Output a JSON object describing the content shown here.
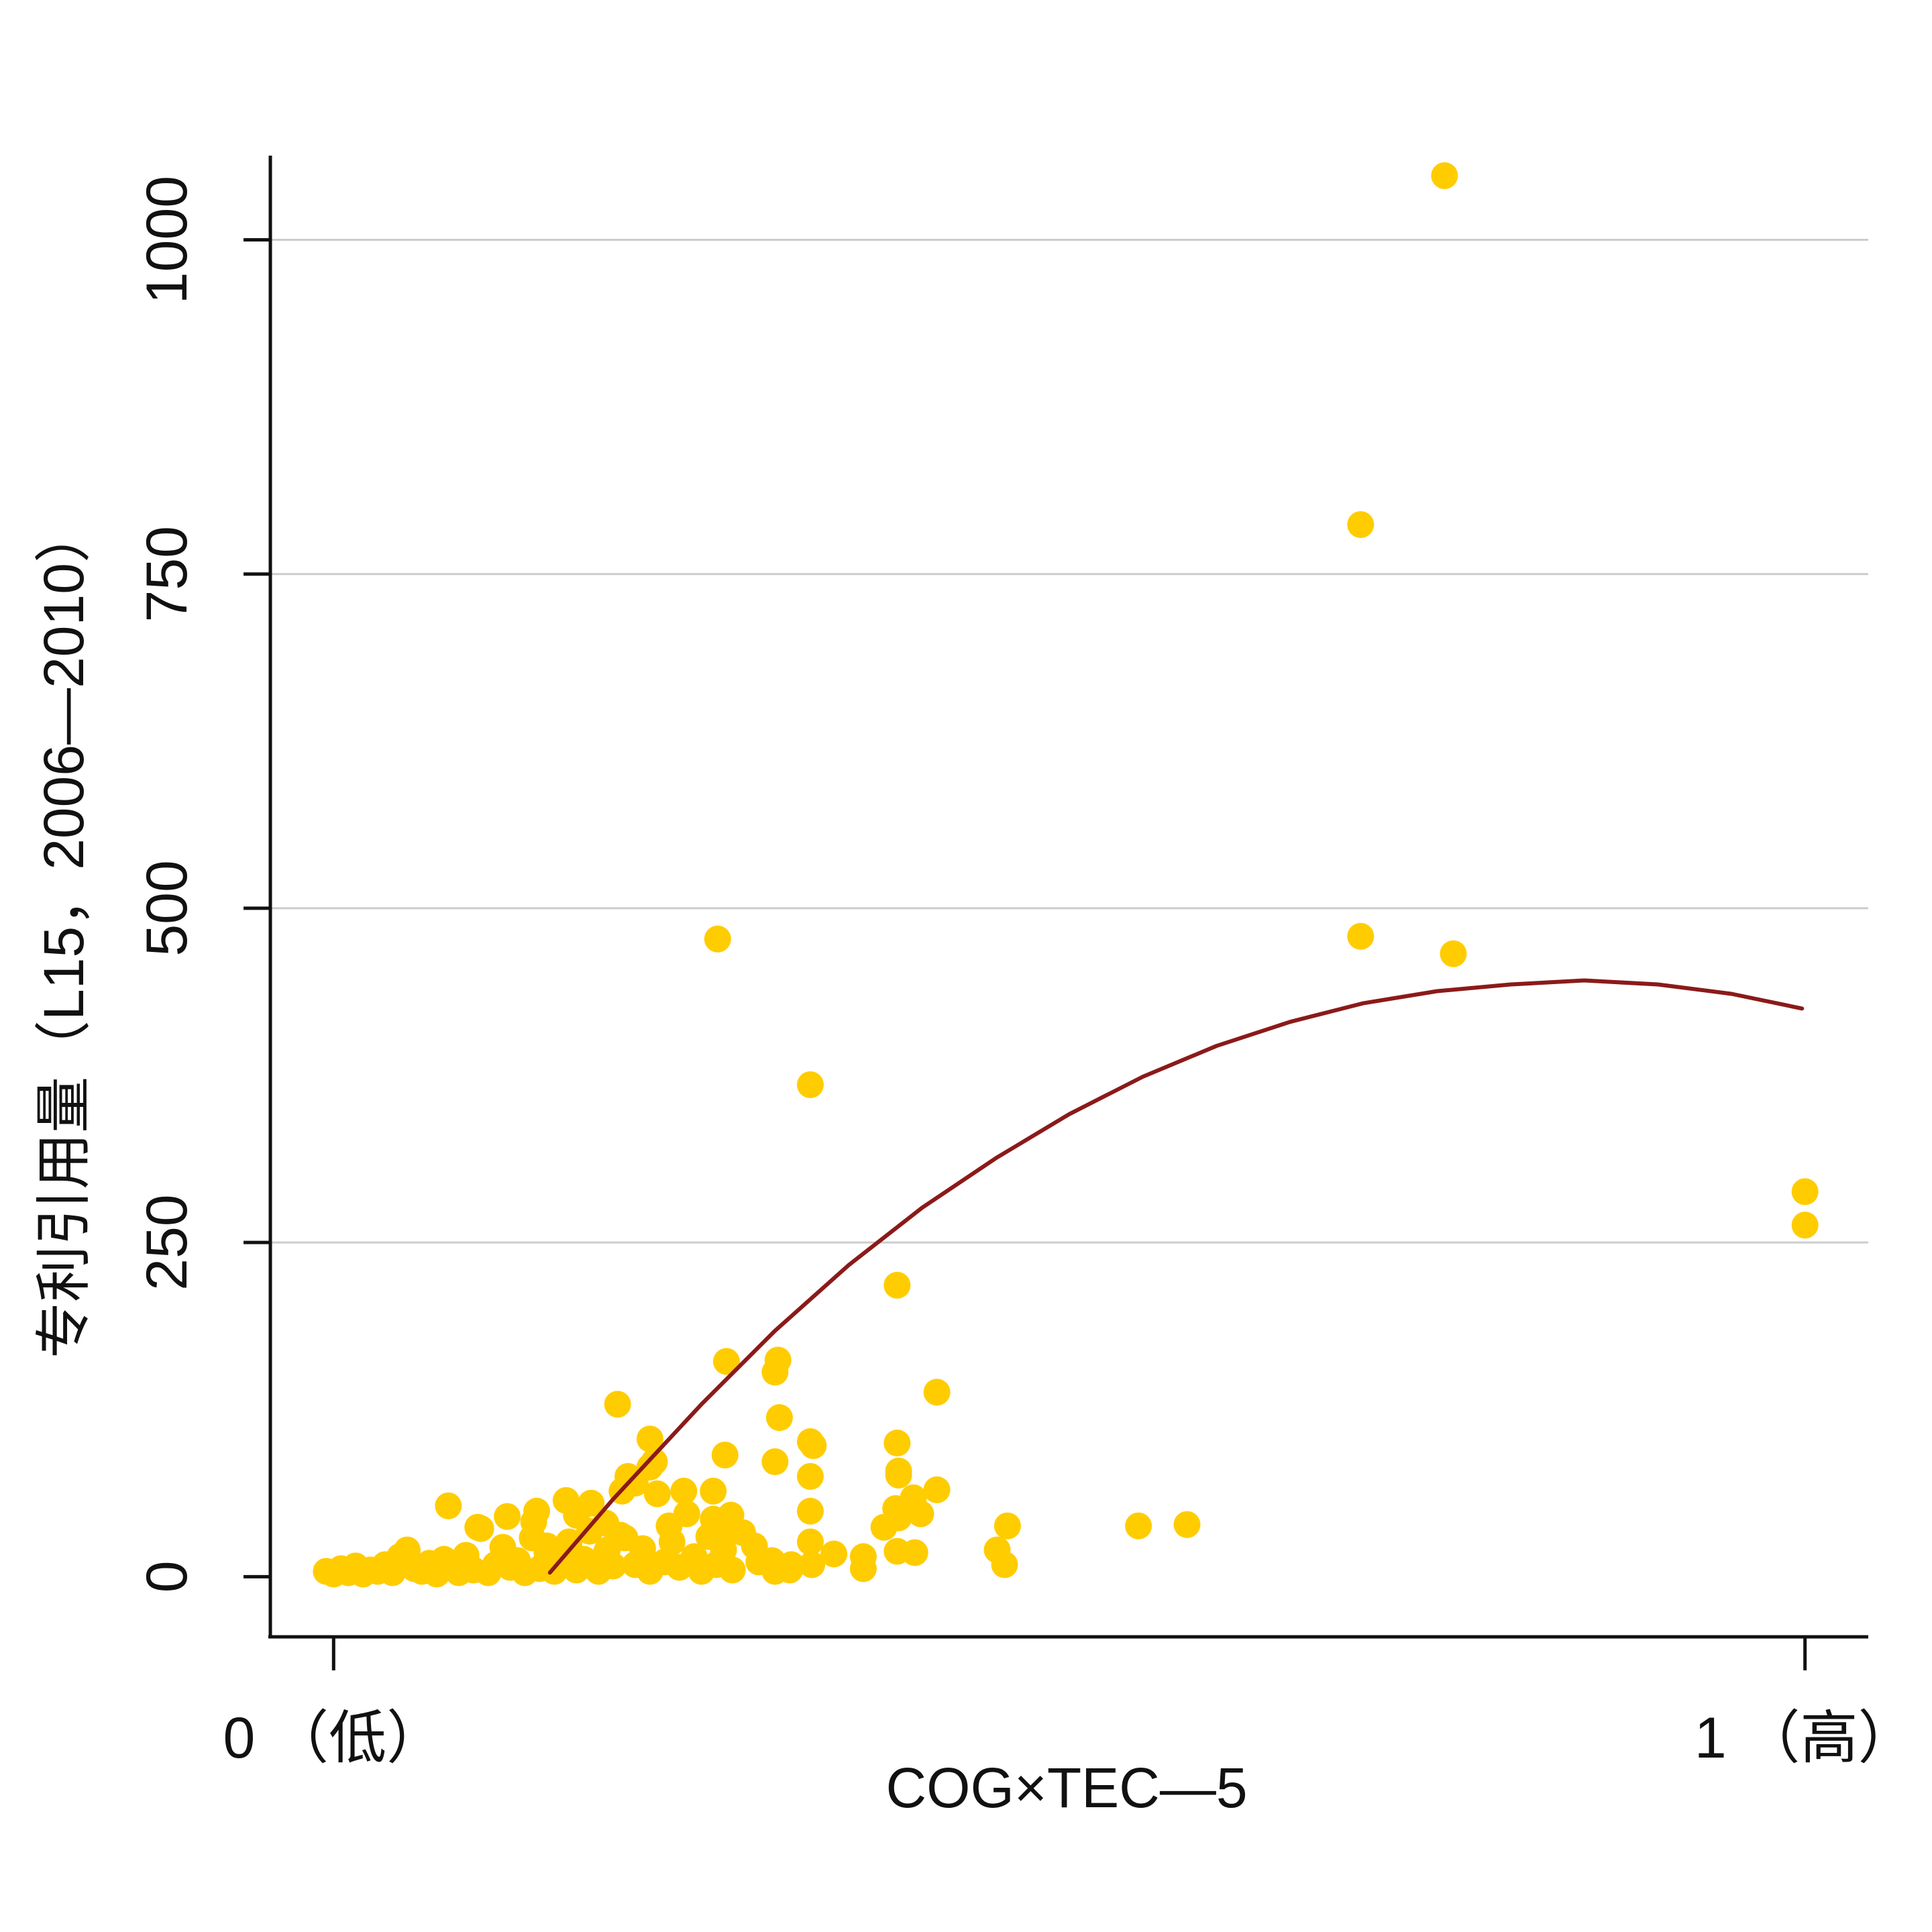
{
  "chart_data": {
    "type": "scatter",
    "xlabel": "COG×TEC—5",
    "ylabel": "专利引用量（L15，2006—2010）",
    "x_ticks": [
      {
        "value": 0,
        "label": "0 （低）"
      },
      {
        "value": 1,
        "label": "1 （高）"
      }
    ],
    "y_ticks": [
      {
        "value": 0,
        "label": "0"
      },
      {
        "value": 250,
        "label": "250"
      },
      {
        "value": 500,
        "label": "500"
      },
      {
        "value": 750,
        "label": "750"
      },
      {
        "value": 1000,
        "label": "1000"
      }
    ],
    "xlim": [
      -0.043,
      1.043
    ],
    "ylim": [
      -45,
      1063
    ],
    "grid": "horizontal",
    "colors": {
      "points": "#FFCC00",
      "fit": "#8B1A1A",
      "grid": "#CCCCCC",
      "axis": "#111111"
    },
    "series": [
      {
        "type": "scatter",
        "points": [
          [
            -0.005,
            4
          ],
          [
            0.0,
            2
          ],
          [
            0.005,
            6
          ],
          [
            0.01,
            3
          ],
          [
            0.015,
            8
          ],
          [
            0.02,
            2
          ],
          [
            0.025,
            5
          ],
          [
            0.03,
            4
          ],
          [
            0.035,
            9
          ],
          [
            0.04,
            3
          ],
          [
            0.045,
            15
          ],
          [
            0.05,
            20
          ],
          [
            0.055,
            6
          ],
          [
            0.06,
            4
          ],
          [
            0.065,
            10
          ],
          [
            0.07,
            2
          ],
          [
            0.075,
            13
          ],
          [
            0.08,
            8
          ],
          [
            0.085,
            3
          ],
          [
            0.09,
            16
          ],
          [
            0.095,
            5
          ],
          [
            0.1,
            36
          ],
          [
            0.105,
            3
          ],
          [
            0.11,
            9
          ],
          [
            0.115,
            22
          ],
          [
            0.12,
            7
          ],
          [
            0.125,
            12
          ],
          [
            0.13,
            3
          ],
          [
            0.135,
            29
          ],
          [
            0.14,
            6
          ],
          [
            0.145,
            18
          ],
          [
            0.15,
            4
          ],
          [
            0.155,
            10
          ],
          [
            0.16,
            26
          ],
          [
            0.165,
            5
          ],
          [
            0.17,
            13
          ],
          [
            0.175,
            55
          ],
          [
            0.18,
            4
          ],
          [
            0.185,
            17
          ],
          [
            0.19,
            8
          ],
          [
            0.195,
            31
          ],
          [
            0.2,
            75
          ],
          [
            0.205,
            9
          ],
          [
            0.21,
            21
          ],
          [
            0.215,
            4
          ],
          [
            0.22,
            62
          ],
          [
            0.225,
            11
          ],
          [
            0.23,
            26
          ],
          [
            0.235,
            7
          ],
          [
            0.24,
            47
          ],
          [
            0.245,
            15
          ],
          [
            0.25,
            4
          ],
          [
            0.255,
            30
          ],
          [
            0.26,
            9
          ],
          [
            0.265,
            20
          ],
          [
            0.078,
            53
          ],
          [
            0.098,
            37
          ],
          [
            0.118,
            45
          ],
          [
            0.138,
            49
          ],
          [
            0.158,
            57
          ],
          [
            0.174,
            34
          ],
          [
            0.186,
            20
          ],
          [
            0.196,
            64
          ],
          [
            0.215,
            82
          ],
          [
            0.238,
            64
          ],
          [
            0.258,
            64
          ],
          [
            0.145,
            23
          ],
          [
            0.165,
            46
          ],
          [
            0.185,
            40
          ],
          [
            0.205,
            70
          ],
          [
            0.218,
            86
          ],
          [
            0.228,
            38
          ],
          [
            0.162,
            17
          ],
          [
            0.198,
            29
          ],
          [
            0.136,
            41
          ],
          [
            0.193,
            129
          ],
          [
            0.215,
            103
          ],
          [
            0.31,
            5
          ],
          [
            0.311,
            9
          ],
          [
            0.34,
            17
          ],
          [
            0.36,
            6
          ],
          [
            0.374,
            37
          ],
          [
            0.261,
            477
          ],
          [
            0.267,
            161
          ],
          [
            0.266,
            91
          ],
          [
            0.258,
            43
          ],
          [
            0.262,
            30
          ],
          [
            0.27,
            46
          ],
          [
            0.278,
            33
          ],
          [
            0.286,
            23
          ],
          [
            0.271,
            5
          ],
          [
            0.289,
            11
          ],
          [
            0.303,
            119
          ],
          [
            0.3,
            153
          ],
          [
            0.302,
            162
          ],
          [
            0.3,
            86
          ],
          [
            0.326,
            98
          ],
          [
            0.324,
            101
          ],
          [
            0.324,
            75
          ],
          [
            0.324,
            49
          ],
          [
            0.324,
            26
          ],
          [
            0.325,
            9
          ],
          [
            0.324,
            368
          ],
          [
            0.298,
            12
          ],
          [
            0.3,
            4
          ],
          [
            0.383,
            218
          ],
          [
            0.383,
            100
          ],
          [
            0.384,
            79
          ],
          [
            0.384,
            76
          ],
          [
            0.382,
            51
          ],
          [
            0.384,
            44
          ],
          [
            0.399,
            47
          ],
          [
            0.394,
            59
          ],
          [
            0.41,
            65
          ],
          [
            0.41,
            138
          ],
          [
            0.383,
            19
          ],
          [
            0.395,
            18
          ],
          [
            0.36,
            15
          ],
          [
            0.451,
            20
          ],
          [
            0.458,
            38
          ],
          [
            0.456,
            9
          ],
          [
            0.547,
            38
          ],
          [
            0.58,
            39
          ],
          [
            0.698,
            479
          ],
          [
            0.698,
            787
          ],
          [
            0.755,
            1048
          ],
          [
            0.761,
            466
          ],
          [
            1.0,
            288
          ],
          [
            1.0,
            263
          ]
        ]
      },
      {
        "type": "line",
        "name": "",
        "points": [
          [
            0.147,
            3
          ],
          [
            0.19,
            58
          ],
          [
            0.25,
            129
          ],
          [
            0.3,
            184
          ],
          [
            0.35,
            233
          ],
          [
            0.4,
            276
          ],
          [
            0.45,
            313
          ],
          [
            0.5,
            346
          ],
          [
            0.55,
            374
          ],
          [
            0.6,
            397
          ],
          [
            0.65,
            415
          ],
          [
            0.7,
            429
          ],
          [
            0.75,
            438
          ],
          [
            0.8,
            443
          ],
          [
            0.85,
            446
          ],
          [
            0.9,
            443
          ],
          [
            0.95,
            436
          ],
          [
            0.998,
            425
          ]
        ]
      }
    ]
  }
}
